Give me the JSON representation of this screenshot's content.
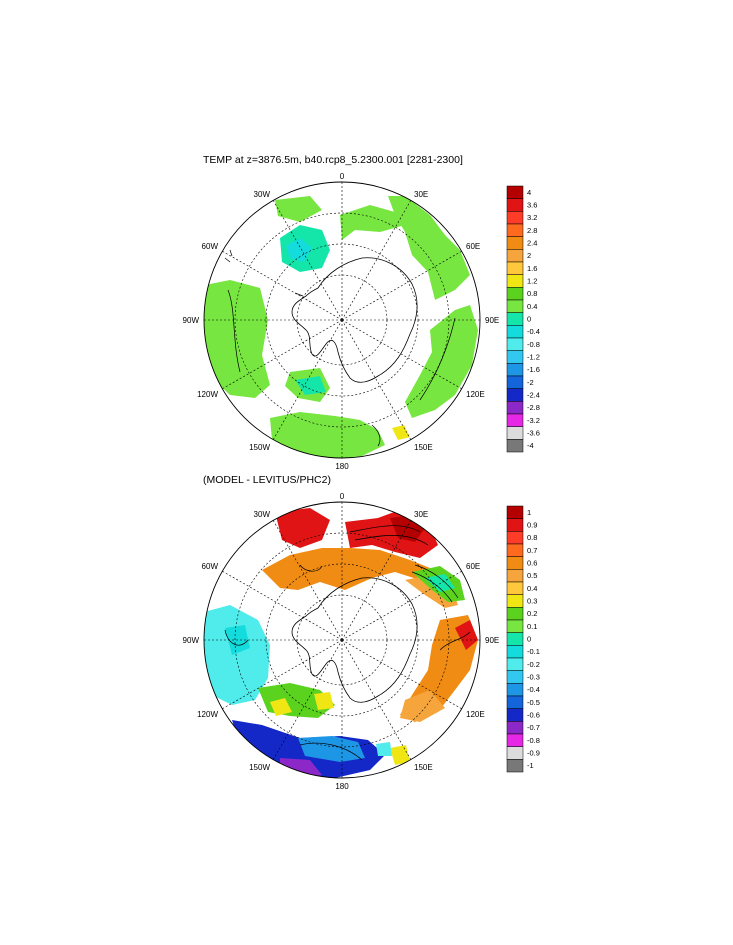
{
  "titles": {
    "top": "TEMP at z=3876.5m, b40.rcp8_5.2300.001 [2281-2300]",
    "bottom": "(MODEL - LEVITUS/PHC2)"
  },
  "longitude_labels": {
    "deg0": "0",
    "deg30e": "30E",
    "deg60e": "60E",
    "deg90e": "90E",
    "deg120e": "120E",
    "deg150e": "150E",
    "deg180": "180",
    "deg150w": "150W",
    "deg120w": "120W",
    "deg90w": "90W",
    "deg60w": "60W",
    "deg30w": "30W"
  },
  "colorbars": {
    "top": {
      "labels": [
        "4",
        "3.6",
        "3.2",
        "2.8",
        "2.4",
        "2",
        "1.6",
        "1.2",
        "0.8",
        "0.4",
        "0",
        "-0.4",
        "-0.8",
        "-1.2",
        "-1.6",
        "-2",
        "-2.4",
        "-2.8",
        "-3.2",
        "-3.6",
        "-4"
      ],
      "colors": [
        "#b40000",
        "#e01414",
        "#ff3c28",
        "#ff6a1e",
        "#f08c14",
        "#f5a53c",
        "#ffc83c",
        "#f0e614",
        "#5ad21e",
        "#78e640",
        "#14e6aa",
        "#14dcdc",
        "#50ebeb",
        "#32c8f0",
        "#1e96e6",
        "#1464dc",
        "#1428c8",
        "#8c28c8",
        "#e628e6",
        "#dcdcdc",
        "#787878"
      ]
    },
    "bottom": {
      "labels": [
        "1",
        "0.9",
        "0.8",
        "0.7",
        "0.6",
        "0.5",
        "0.4",
        "0.3",
        "0.2",
        "0.1",
        "0",
        "-0.1",
        "-0.2",
        "-0.3",
        "-0.4",
        "-0.5",
        "-0.6",
        "-0.7",
        "-0.8",
        "-0.9",
        "-1"
      ],
      "colors": [
        "#b40000",
        "#e01414",
        "#ff3c28",
        "#ff6a1e",
        "#f08c14",
        "#f5a53c",
        "#ffc83c",
        "#f0e614",
        "#5ad21e",
        "#78e640",
        "#14e6aa",
        "#14dcdc",
        "#50ebeb",
        "#32c8f0",
        "#1e96e6",
        "#1464dc",
        "#1428c8",
        "#8c28c8",
        "#e628e6",
        "#dcdcdc",
        "#787878"
      ]
    }
  }
}
